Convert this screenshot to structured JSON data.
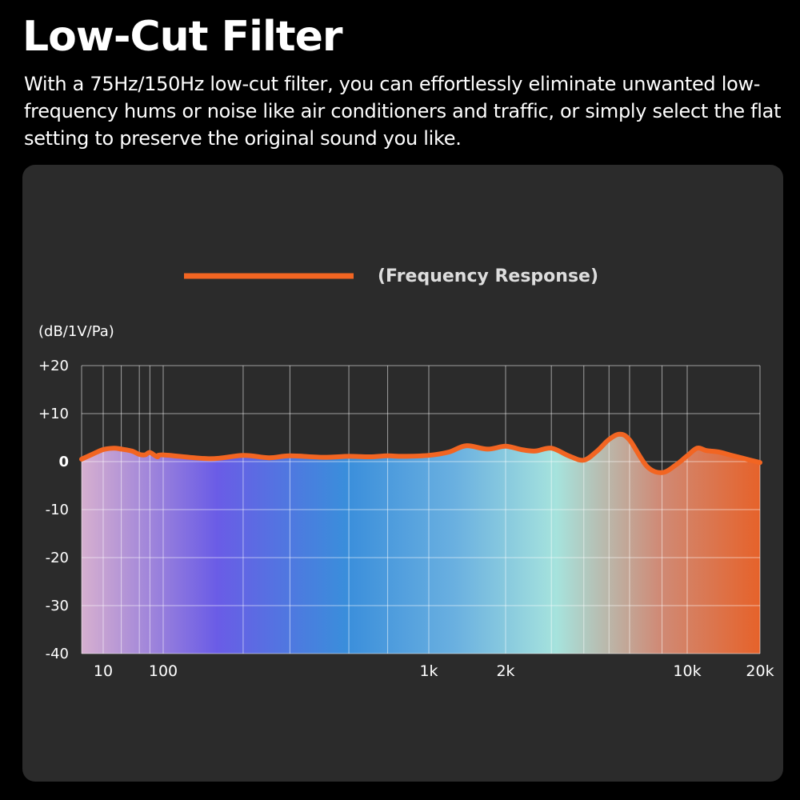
{
  "header": {
    "title": "Low-Cut Filter",
    "description": "With a 75Hz/150Hz low-cut filter, you can effortlessly eliminate unwanted low-frequency hums or noise like air conditioners and traffic, or simply select the flat setting to preserve the original sound you like."
  },
  "colors": {
    "background": "#000000",
    "panel": "#2b2b2b",
    "curve": "#f26522",
    "grid": "#ffffff",
    "text": "#ffffff"
  },
  "chart_data": {
    "type": "area",
    "title": "",
    "legend": [
      {
        "label": "(Frequency Response)",
        "color": "#f26522",
        "placement": "top-center"
      }
    ],
    "ylabel": "(dB/1V/Pa)",
    "xlabel": "",
    "ylim": [
      -40,
      20
    ],
    "y_tick_labels": [
      {
        "value": 20,
        "label": "+20"
      },
      {
        "value": 10,
        "label": "+10"
      },
      {
        "value": 0,
        "label": "0"
      },
      {
        "value": -10,
        "label": "-10"
      },
      {
        "value": -20,
        "label": "-20"
      },
      {
        "value": -30,
        "label": "-30"
      },
      {
        "value": -40,
        "label": "-40"
      }
    ],
    "x_tick_labels": [
      {
        "value": 10,
        "label": "10"
      },
      {
        "value": 100,
        "label": "100"
      },
      {
        "value": 1000,
        "label": "1k"
      },
      {
        "value": 2000,
        "label": "2k"
      },
      {
        "value": 10000,
        "label": "10k"
      },
      {
        "value": 20000,
        "label": "20k"
      }
    ],
    "grid": true,
    "series": [
      {
        "color": "#f26522",
        "x": [
          5,
          7,
          10,
          15,
          20,
          30,
          40,
          50,
          60,
          80,
          100,
          150,
          200,
          250,
          300,
          400,
          500,
          600,
          700,
          800,
          1000,
          1200,
          1400,
          1700,
          2000,
          2300,
          2600,
          3000,
          3500,
          4000,
          4500,
          5000,
          5500,
          6000,
          7000,
          8000,
          9000,
          10000,
          11000,
          12000,
          13500,
          15000,
          17000,
          20000
        ],
        "y": [
          0.5,
          1.5,
          2.5,
          2.8,
          2.6,
          2.2,
          1.5,
          1.4,
          1.9,
          1.0,
          1.4,
          0.6,
          1.3,
          0.8,
          1.2,
          0.9,
          1.1,
          1.0,
          1.2,
          1.1,
          1.3,
          2.0,
          3.3,
          2.6,
          3.2,
          2.5,
          2.2,
          2.8,
          1.2,
          0.3,
          2.2,
          4.6,
          5.7,
          4.5,
          -1.0,
          -2.3,
          -0.8,
          1.2,
          2.8,
          2.3,
          2.0,
          1.4,
          0.7,
          -0.2
        ]
      }
    ]
  }
}
